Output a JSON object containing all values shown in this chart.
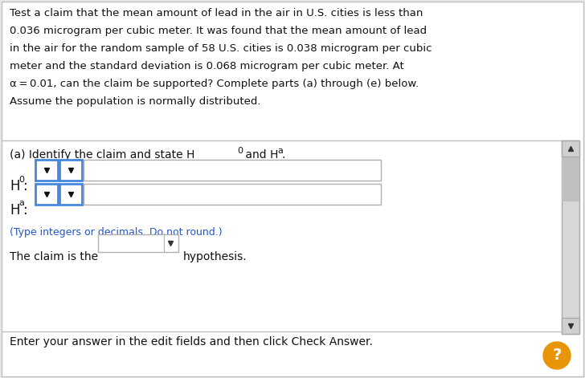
{
  "bg_color": "#e8e8e8",
  "panel_color": "#ffffff",
  "border_color": "#c0c0c0",
  "divider_color": "#c0c0c0",
  "text_color": "#111111",
  "blue_text_color": "#2255cc",
  "dropdown_border_color": "#4488dd",
  "input_border_color": "#b0b0b0",
  "scrollbar_track": "#d8d8d8",
  "scrollbar_thumb": "#c0c0c0",
  "scrollbar_btn": "#d0d0d0",
  "question_bubble_color": "#e8950a",
  "para_lines": [
    "Test a claim that the mean amount of lead in the air in U.S. cities is less than",
    "0.036 microgram per cubic meter. It was found that the mean amount of lead",
    "in the air for the random sample of 58 U.S. cities is 0.038 microgram per cubic",
    "meter and the standard deviation is 0.068 microgram per cubic meter. At",
    "α = 0.01, can the claim be supported? Complete parts (a) through (e) below.",
    "Assume the population is normally distributed."
  ],
  "part_a_text": "(a) Identify the claim and state H",
  "part_a_sub0": "0",
  "part_a_mid": " and H",
  "part_a_suba": "a",
  "part_a_end": ".",
  "h0_prefix": "H",
  "h0_sub": "0",
  "ha_prefix": "H",
  "ha_sub": "a",
  "hint_text": "(Type integers or decimals. Do not round.)",
  "claim_prefix": "The claim is the",
  "claim_suffix": "hypothesis.",
  "footer_text": "Enter your answer in the edit fields and then click Check Answer."
}
